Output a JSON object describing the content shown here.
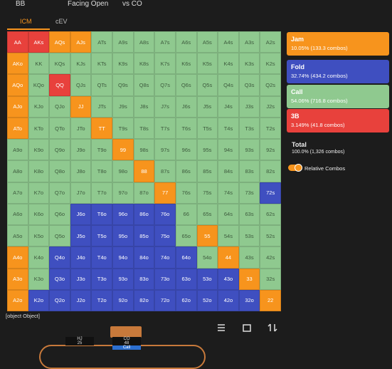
{
  "header": {
    "position": "BB",
    "scenario": "Facing Open",
    "opponent": "vs CO"
  },
  "tabs": [
    "ICM",
    "cEV"
  ],
  "grid": {
    "labels": [
      [
        "AA",
        "AKs",
        "AQs",
        "AJs",
        "ATs",
        "A9s",
        "A8s",
        "A7s",
        "A6s",
        "A5s",
        "A4s",
        "A3s",
        "A2s"
      ],
      [
        "AKo",
        "KK",
        "KQs",
        "KJs",
        "KTs",
        "K9s",
        "K8s",
        "K7s",
        "K6s",
        "K5s",
        "K4s",
        "K3s",
        "K2s"
      ],
      [
        "AQo",
        "KQo",
        "QQ",
        "QJs",
        "QTs",
        "Q9s",
        "Q8s",
        "Q7s",
        "Q6s",
        "Q5s",
        "Q4s",
        "Q3s",
        "Q2s"
      ],
      [
        "AJo",
        "KJo",
        "QJo",
        "JJ",
        "JTs",
        "J9s",
        "J8s",
        "J7s",
        "J6s",
        "J5s",
        "J4s",
        "J3s",
        "J2s"
      ],
      [
        "ATo",
        "KTo",
        "QTo",
        "JTo",
        "TT",
        "T9s",
        "T8s",
        "T7s",
        "T6s",
        "T5s",
        "T4s",
        "T3s",
        "T2s"
      ],
      [
        "A9o",
        "K9o",
        "Q9o",
        "J9o",
        "T9o",
        "99",
        "98s",
        "97s",
        "96s",
        "95s",
        "94s",
        "93s",
        "92s"
      ],
      [
        "A8o",
        "K8o",
        "Q8o",
        "J8o",
        "T8o",
        "98o",
        "88",
        "87s",
        "86s",
        "85s",
        "84s",
        "83s",
        "82s"
      ],
      [
        "A7o",
        "K7o",
        "Q7o",
        "J7o",
        "T7o",
        "97o",
        "87o",
        "77",
        "76s",
        "75s",
        "74s",
        "73s",
        "72s"
      ],
      [
        "A6o",
        "K6o",
        "Q6o",
        "J6o",
        "T6o",
        "96o",
        "86o",
        "76o",
        "66",
        "65s",
        "64s",
        "63s",
        "62s"
      ],
      [
        "A5o",
        "K5o",
        "Q5o",
        "J5o",
        "T5o",
        "95o",
        "85o",
        "75o",
        "65o",
        "55",
        "54s",
        "53s",
        "52s"
      ],
      [
        "A4o",
        "K4o",
        "Q4o",
        "J4o",
        "T4o",
        "94o",
        "84o",
        "74o",
        "64o",
        "54o",
        "44",
        "43s",
        "42s"
      ],
      [
        "A3o",
        "K3o",
        "Q3o",
        "J3o",
        "T3o",
        "93o",
        "83o",
        "73o",
        "63o",
        "53o",
        "43o",
        "33",
        "32s"
      ],
      [
        "A2o",
        "K2o",
        "Q2o",
        "J2o",
        "T2o",
        "92o",
        "82o",
        "72o",
        "62o",
        "52o",
        "42o",
        "32o",
        "22"
      ]
    ],
    "colors": [
      [
        "#e8413c",
        "#e8413c",
        "#f7941d",
        "#f7941d",
        "#8fc98f",
        "#8fc98f",
        "#8fc98f",
        "#8fc98f",
        "#8fc98f",
        "#8fc98f",
        "#8fc98f",
        "#8fc98f",
        "#8fc98f"
      ],
      [
        "#f7941d",
        "#8fc98f",
        "#8fc98f",
        "#8fc98f",
        "#8fc98f",
        "#8fc98f",
        "#8fc98f",
        "#8fc98f",
        "#8fc98f",
        "#8fc98f",
        "#8fc98f",
        "#8fc98f",
        "#8fc98f"
      ],
      [
        "#f7941d",
        "#8fc98f",
        "#e8413c",
        "#8fc98f",
        "#8fc98f",
        "#8fc98f",
        "#8fc98f",
        "#8fc98f",
        "#8fc98f",
        "#8fc98f",
        "#8fc98f",
        "#8fc98f",
        "#8fc98f"
      ],
      [
        "#f7941d",
        "#8fc98f",
        "#8fc98f",
        "#f7941d",
        "#8fc98f",
        "#8fc98f",
        "#8fc98f",
        "#8fc98f",
        "#8fc98f",
        "#8fc98f",
        "#8fc98f",
        "#8fc98f",
        "#8fc98f"
      ],
      [
        "#f7941d",
        "#8fc98f",
        "#8fc98f",
        "#8fc98f",
        "#f7941d",
        "#8fc98f",
        "#8fc98f",
        "#8fc98f",
        "#8fc98f",
        "#8fc98f",
        "#8fc98f",
        "#8fc98f",
        "#8fc98f"
      ],
      [
        "#8fc98f",
        "#8fc98f",
        "#8fc98f",
        "#8fc98f",
        "#8fc98f",
        "#f7941d",
        "#8fc98f",
        "#8fc98f",
        "#8fc98f",
        "#8fc98f",
        "#8fc98f",
        "#8fc98f",
        "#8fc98f"
      ],
      [
        "#8fc98f",
        "#8fc98f",
        "#8fc98f",
        "#8fc98f",
        "#8fc98f",
        "#8fc98f",
        "#f7941d",
        "#8fc98f",
        "#8fc98f",
        "#8fc98f",
        "#8fc98f",
        "#8fc98f",
        "#8fc98f"
      ],
      [
        "#8fc98f",
        "#8fc98f",
        "#8fc98f",
        "#8fc98f",
        "#8fc98f",
        "#8fc98f",
        "#8fc98f",
        "#f7941d",
        "#8fc98f",
        "#8fc98f",
        "#8fc98f",
        "#8fc98f",
        "#3f4fc0"
      ],
      [
        "#8fc98f",
        "#8fc98f",
        "#8fc98f",
        "#3f4fc0",
        "#3f4fc0",
        "#3f4fc0",
        "#3f4fc0",
        "#3f4fc0",
        "#8fc98f",
        "#8fc98f",
        "#8fc98f",
        "#8fc98f",
        "#8fc98f"
      ],
      [
        "#8fc98f",
        "#8fc98f",
        "#8fc98f",
        "#3f4fc0",
        "#3f4fc0",
        "#3f4fc0",
        "#3f4fc0",
        "#3f4fc0",
        "#8fc98f",
        "#f7941d",
        "#8fc98f",
        "#8fc98f",
        "#8fc98f"
      ],
      [
        "#f7941d",
        "#8fc98f",
        "#3f4fc0",
        "#3f4fc0",
        "#3f4fc0",
        "#3f4fc0",
        "#3f4fc0",
        "#3f4fc0",
        "#3f4fc0",
        "#8fc98f",
        "#f7941d",
        "#8fc98f",
        "#8fc98f"
      ],
      [
        "#f7941d",
        "#8fc98f",
        "#3f4fc0",
        "#3f4fc0",
        "#3f4fc0",
        "#3f4fc0",
        "#3f4fc0",
        "#3f4fc0",
        "#3f4fc0",
        "#3f4fc0",
        "#3f4fc0",
        "#f7941d",
        "#8fc98f"
      ],
      [
        "#f7941d",
        "#3f4fc0",
        "#3f4fc0",
        "#3f4fc0",
        "#3f4fc0",
        "#3f4fc0",
        "#3f4fc0",
        "#3f4fc0",
        "#3f4fc0",
        "#3f4fc0",
        "#3f4fc0",
        "#3f4fc0",
        "#f7941d"
      ]
    ]
  },
  "legend": [
    {
      "name": "Jam",
      "detail": "10.05% (133.3 combos)",
      "color": "#f7941d"
    },
    {
      "name": "Fold",
      "detail": "32.74% (434.2 combos)",
      "color": "#3f4fc0"
    },
    {
      "name": "Call",
      "detail": "54.06% (716.8 combos)",
      "color": "#8fc98f"
    },
    {
      "name": "3B",
      "detail": "3.149% (41.8 combos)",
      "color": "#e8413c"
    }
  ],
  "total": {
    "label": "Total",
    "detail": "100.0% (1,326 combos)"
  },
  "toggle": "Relative Combos",
  "footer_text": "[object Object]",
  "seats": [
    {
      "name": "HJ",
      "stack": "25"
    },
    {
      "name": "CO",
      "stack": "48",
      "action": "Call"
    }
  ]
}
